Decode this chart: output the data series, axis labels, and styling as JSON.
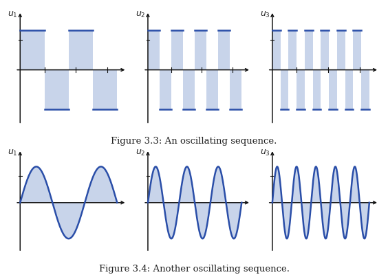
{
  "title_top": "Figure 3.3: An oscillating sequence.",
  "title_bottom": "Figure 3.4: Another oscillating sequence.",
  "title_fontsize": 9.5,
  "fill_color": "#c8d4ea",
  "line_color": "#2a4ea8",
  "axis_color": "#111111",
  "background_color": "#ffffff",
  "fig_width": 5.64,
  "fig_height": 4.03,
  "dpi": 100,
  "top_row": [
    {
      "label": "1",
      "n_half": 4
    },
    {
      "label": "2",
      "n_half": 8
    },
    {
      "label": "3",
      "n_half": 12
    }
  ],
  "bottom_row": [
    {
      "label": "1",
      "freq": 1.5
    },
    {
      "label": "2",
      "freq": 3.0
    },
    {
      "label": "3",
      "freq": 5.0
    }
  ]
}
